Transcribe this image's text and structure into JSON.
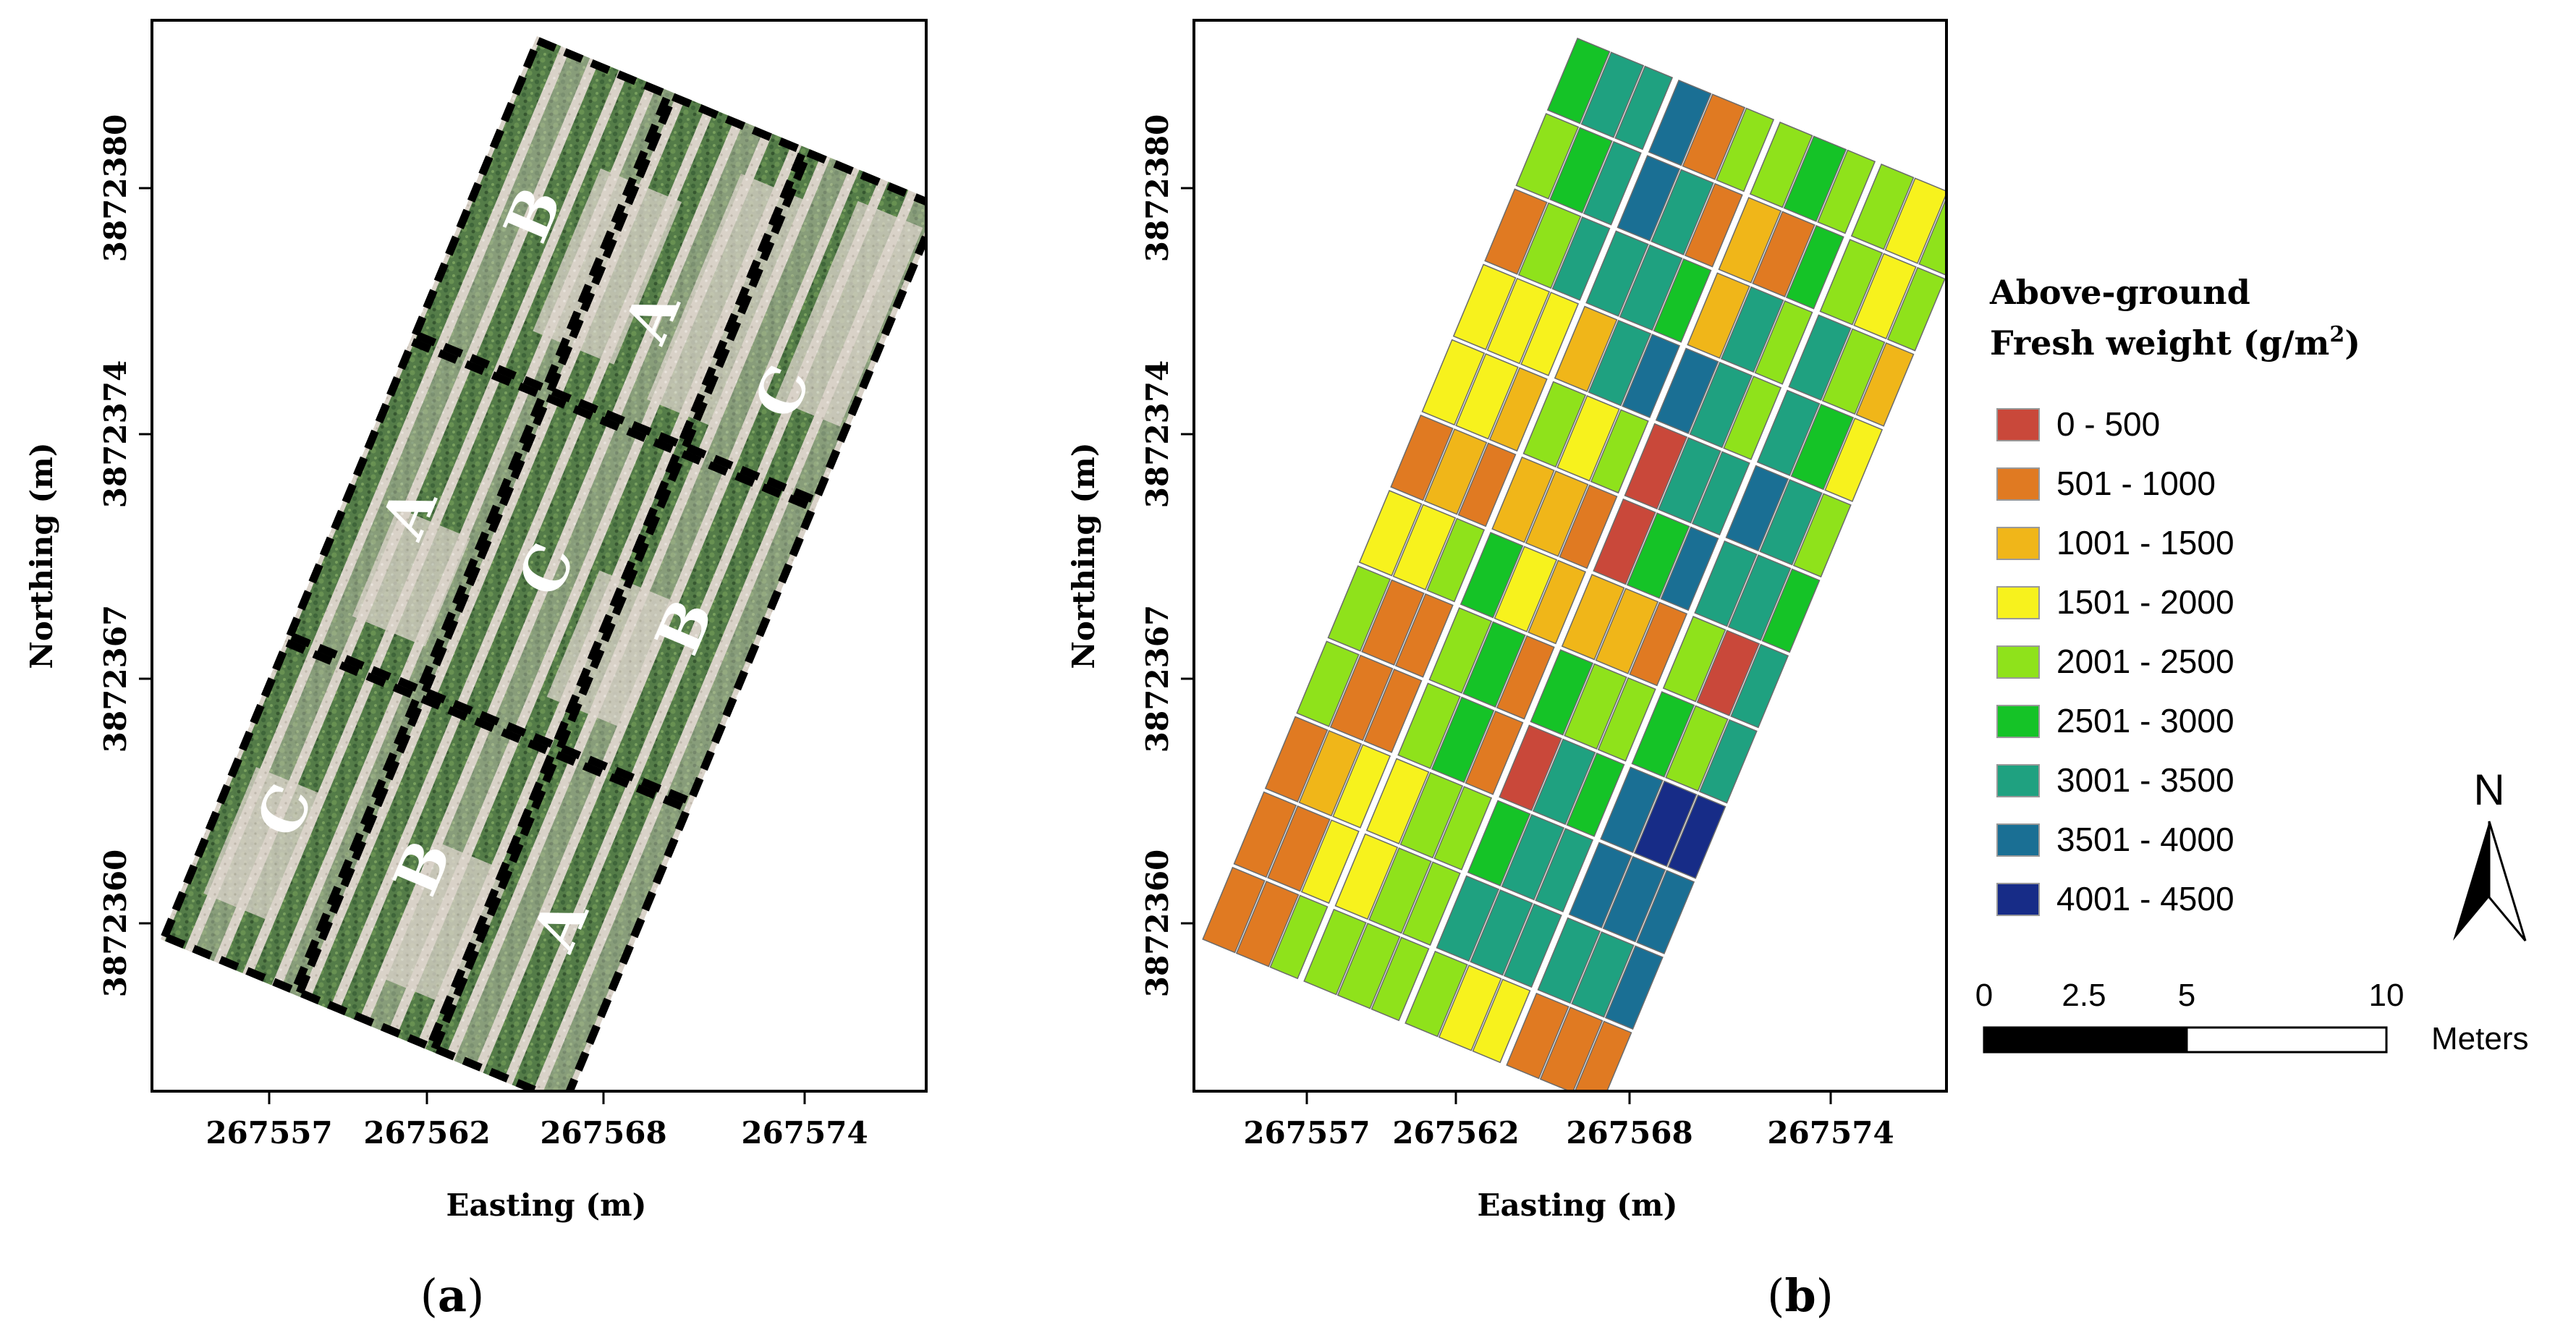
{
  "colors": {
    "frame": "#000000",
    "class_colors": [
      "#c9483a",
      "#e07a22",
      "#f0b619",
      "#f7f21d",
      "#8fe21b",
      "#15c327",
      "#1fa180",
      "#1a6f94",
      "#172c87"
    ],
    "photo_bg": "#cfc8bf",
    "crop_green": "#3e6b33"
  },
  "panel_a": {
    "caption_open": "(",
    "caption_letter": "a",
    "caption_close": ")",
    "x_label": "Easting (m)",
    "y_label": "Northing (m)",
    "x_ticks": [
      "267557",
      "267562",
      "267568",
      "267574"
    ],
    "y_ticks": [
      "3872380",
      "3872374",
      "3872367",
      "3872360"
    ],
    "plot_labels": [
      "B",
      "A",
      "C",
      "A",
      "C",
      "B",
      "C",
      "B",
      "A"
    ]
  },
  "panel_b": {
    "caption_open": "(",
    "caption_letter": "b",
    "caption_close": ")",
    "x_label": "Easting (m)",
    "y_label": "Northing (m)",
    "x_ticks": [
      "267557",
      "267562",
      "267568",
      "267574"
    ],
    "y_ticks": [
      "3872380",
      "3872374",
      "3872367",
      "3872360"
    ]
  },
  "legend": {
    "title_line1": "Above-ground",
    "title_line2_prefix": "Fresh weight (g/m",
    "title_line2_sup": "2",
    "title_line2_suffix": ")",
    "classes": [
      "0 - 500",
      "501 - 1000",
      "1001 - 1500",
      "1501 - 2000",
      "2001 - 2500",
      "2501 - 3000",
      "3001 - 3500",
      "3501 - 4000",
      "4001 - 4500"
    ]
  },
  "scale_bar": {
    "labels": [
      "0",
      "2.5",
      "5",
      "10"
    ],
    "unit": "Meters"
  },
  "north_arrow": {
    "label": "N"
  },
  "chart_data": {
    "type": "heatmap",
    "title": "Above-ground Fresh weight (g/m2)",
    "xlabel": "Easting (m)",
    "ylabel": "Northing (m)",
    "value_range_bins": [
      "0 - 500",
      "501 - 1000",
      "1001 - 1500",
      "1501 - 2000",
      "2001 - 2500",
      "2501 - 3000",
      "3001 - 3500",
      "3501 - 4000",
      "4001 - 4500"
    ],
    "grid_cells_class_index": [
      [
        1,
        1,
        4,
        4,
        4,
        4,
        4,
        3,
        3,
        1,
        1,
        1
      ],
      [
        1,
        1,
        3,
        3,
        4,
        4,
        6,
        6,
        6,
        6,
        6,
        7
      ],
      [
        1,
        2,
        3,
        3,
        4,
        4,
        5,
        6,
        6,
        7,
        7,
        7
      ],
      [
        4,
        1,
        1,
        4,
        5,
        1,
        0,
        6,
        5,
        7,
        8,
        8
      ],
      [
        4,
        1,
        1,
        4,
        5,
        1,
        5,
        4,
        4,
        5,
        4,
        6
      ],
      [
        3,
        3,
        4,
        5,
        3,
        2,
        2,
        2,
        1,
        4,
        0,
        6
      ],
      [
        1,
        2,
        1,
        2,
        2,
        1,
        0,
        5,
        7,
        6,
        6,
        5
      ],
      [
        3,
        3,
        2,
        4,
        3,
        4,
        0,
        6,
        6,
        7,
        6,
        4
      ],
      [
        3,
        3,
        3,
        2,
        6,
        7,
        7,
        6,
        4,
        6,
        5,
        3
      ],
      [
        1,
        4,
        6,
        6,
        6,
        5,
        2,
        6,
        4,
        6,
        4,
        2
      ],
      [
        4,
        5,
        6,
        7,
        6,
        1,
        2,
        1,
        5,
        4,
        3,
        4
      ],
      [
        5,
        6,
        6,
        7,
        1,
        4,
        4,
        5,
        4,
        4,
        3,
        4
      ]
    ]
  }
}
